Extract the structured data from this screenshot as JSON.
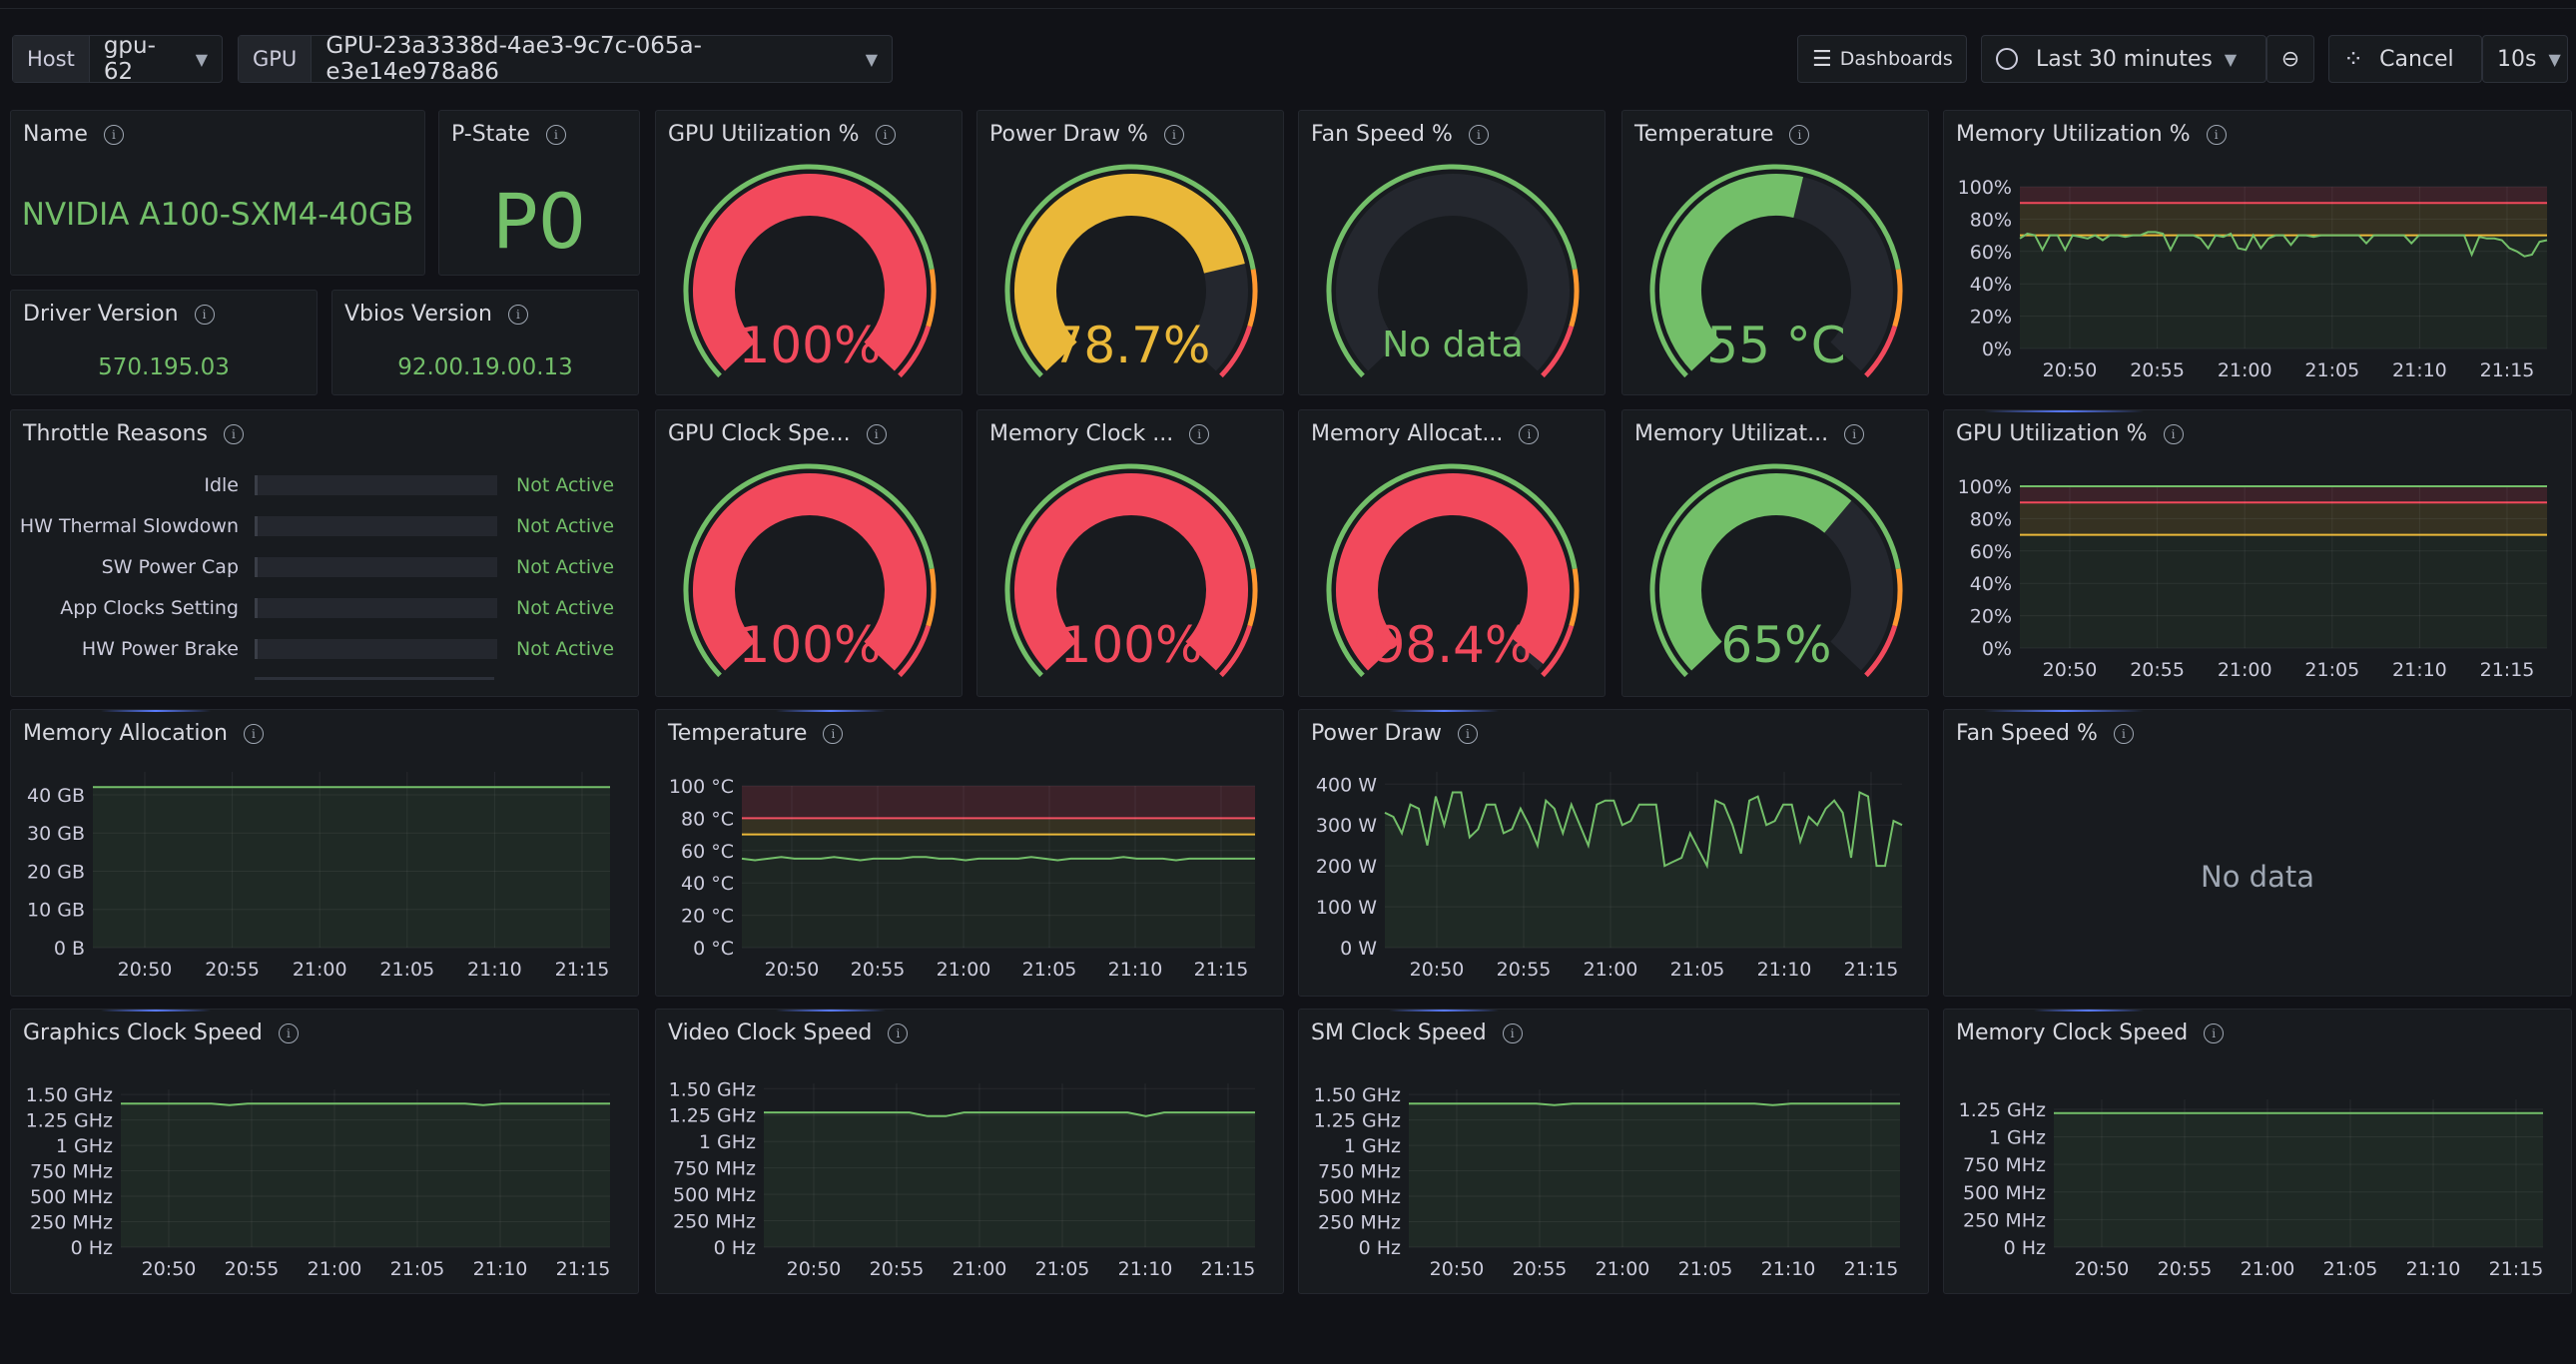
{
  "toolbar": {
    "host_label": "Host",
    "host_value": "gpu-62",
    "gpu_label": "GPU",
    "gpu_value": "GPU-23a3338d-4ae3-9c7c-065a-e3e14e978a86",
    "dashboards_label": "Dashboards",
    "time_range": "Last 30 minutes",
    "cancel_label": "Cancel",
    "refresh_interval": "10s"
  },
  "stats": {
    "name": {
      "title": "Name",
      "value": "NVIDIA A100-SXM4-40GB"
    },
    "pstate": {
      "title": "P-State",
      "value": "P0"
    },
    "driver": {
      "title": "Driver Version",
      "value": "570.195.03"
    },
    "vbios": {
      "title": "Vbios Version",
      "value": "92.00.19.00.13"
    }
  },
  "throttle": {
    "title": "Throttle Reasons",
    "rows": [
      {
        "label": "Idle",
        "status": "Not Active"
      },
      {
        "label": "HW Thermal Slowdown",
        "status": "Not Active"
      },
      {
        "label": "SW Power Cap",
        "status": "Not Active"
      },
      {
        "label": "App Clocks Setting",
        "status": "Not Active"
      },
      {
        "label": "HW Power Brake",
        "status": "Not Active"
      }
    ]
  },
  "gauges": [
    {
      "title": "GPU Utilization %",
      "value": 100,
      "display": "100%",
      "color": "#f2495c"
    },
    {
      "title": "Power Draw %",
      "value": 78.7,
      "display": "78.7%",
      "color": "#eab839"
    },
    {
      "title": "Fan Speed %",
      "value": null,
      "display": "No data",
      "color": "#73bf69"
    },
    {
      "title": "Temperature",
      "value": 55,
      "display": "55 °C",
      "color": "#73bf69"
    },
    {
      "title": "GPU Clock Spe...",
      "value": 100,
      "display": "100%",
      "color": "#f2495c"
    },
    {
      "title": "Memory Clock ...",
      "value": 100,
      "display": "100%",
      "color": "#f2495c"
    },
    {
      "title": "Memory Allocat...",
      "value": 98.4,
      "display": "98.4%",
      "color": "#f2495c"
    },
    {
      "title": "Memory Utilizat...",
      "value": 65,
      "display": "65%",
      "color": "#73bf69"
    }
  ],
  "colors": {
    "green": "#73bf69",
    "yellow": "#eab839",
    "red": "#f2495c",
    "orange": "#ff9830"
  },
  "no_data": "No data",
  "chart_data": [
    {
      "id": "mem_util_pct",
      "type": "line",
      "title": "Memory Utilization %",
      "x_ticks": [
        "20:50",
        "20:55",
        "21:00",
        "21:05",
        "21:10",
        "21:15"
      ],
      "y_ticks": [
        "0%",
        "20%",
        "40%",
        "60%",
        "80%",
        "100%"
      ],
      "ylim": [
        0,
        100
      ],
      "thresholds": [
        70,
        90
      ],
      "series": [
        {
          "values": [
            68,
            71,
            70,
            61,
            70,
            70,
            61,
            70,
            69,
            68,
            70,
            67,
            70,
            70,
            69,
            70,
            70,
            72,
            72,
            71,
            61,
            70,
            70,
            70,
            68,
            62,
            70,
            69,
            71,
            62,
            61,
            70,
            62,
            68,
            70,
            70,
            64,
            70,
            70,
            69,
            70,
            70,
            70,
            70,
            70,
            70,
            65,
            70,
            70,
            70,
            70,
            70,
            65,
            70,
            70,
            70,
            70,
            70,
            70,
            70,
            58,
            69,
            68,
            68,
            67,
            62,
            60,
            57,
            58,
            66,
            67
          ]
        }
      ]
    },
    {
      "id": "gpu_util_pct",
      "type": "line",
      "title": "GPU Utilization %",
      "x_ticks": [
        "20:50",
        "20:55",
        "21:00",
        "21:05",
        "21:10",
        "21:15"
      ],
      "y_ticks": [
        "0%",
        "20%",
        "40%",
        "60%",
        "80%",
        "100%"
      ],
      "ylim": [
        0,
        100
      ],
      "thresholds": [
        70,
        90
      ],
      "series": [
        {
          "values": [
            100,
            100,
            100,
            100,
            100,
            100,
            100,
            100,
            100,
            100,
            100,
            100,
            100,
            100,
            100,
            100,
            100,
            100,
            100,
            100
          ]
        }
      ]
    },
    {
      "id": "mem_alloc",
      "type": "line",
      "title": "Memory Allocation",
      "x_ticks": [
        "20:50",
        "20:55",
        "21:00",
        "21:05",
        "21:10",
        "21:15"
      ],
      "y_ticks": [
        "0 B",
        "10 GB",
        "20 GB",
        "30 GB",
        "40 GB"
      ],
      "ylim": [
        0,
        46
      ],
      "series": [
        {
          "values": [
            42,
            42,
            42,
            42,
            42,
            42,
            42,
            42,
            42,
            42,
            42,
            42,
            42,
            42,
            42,
            42,
            42,
            42,
            42,
            42
          ]
        }
      ]
    },
    {
      "id": "temperature",
      "type": "line",
      "title": "Temperature",
      "x_ticks": [
        "20:50",
        "20:55",
        "21:00",
        "21:05",
        "21:10",
        "21:15"
      ],
      "y_ticks": [
        "0 °C",
        "20 °C",
        "40 °C",
        "60 °C",
        "80 °C",
        "100 °C"
      ],
      "ylim": [
        0,
        100
      ],
      "thresholds": [
        70,
        80
      ],
      "series": [
        {
          "values": [
            55,
            54,
            55,
            56,
            55,
            55,
            55,
            56,
            55,
            54,
            55,
            55,
            55,
            56,
            56,
            55,
            55,
            54,
            55,
            55,
            55,
            55,
            56,
            55,
            54,
            55,
            55,
            55,
            55,
            56,
            55,
            55,
            55,
            54,
            55,
            55,
            55,
            55,
            55,
            55
          ]
        }
      ]
    },
    {
      "id": "power_draw",
      "type": "line",
      "title": "Power Draw",
      "x_ticks": [
        "20:50",
        "20:55",
        "21:00",
        "21:05",
        "21:10",
        "21:15"
      ],
      "y_ticks": [
        "0 W",
        "100 W",
        "200 W",
        "300 W",
        "400 W"
      ],
      "ylim": [
        0,
        430
      ],
      "series": [
        {
          "values": [
            330,
            320,
            280,
            350,
            340,
            250,
            370,
            300,
            380,
            380,
            270,
            290,
            350,
            350,
            280,
            290,
            340,
            300,
            250,
            360,
            340,
            280,
            350,
            300,
            250,
            350,
            360,
            360,
            300,
            310,
            350,
            350,
            350,
            200,
            210,
            220,
            280,
            240,
            200,
            360,
            350,
            300,
            230,
            360,
            370,
            300,
            310,
            350,
            350,
            260,
            320,
            300,
            340,
            360,
            330,
            220,
            380,
            370,
            200,
            200,
            310,
            300
          ]
        }
      ]
    },
    {
      "id": "graphics_clock",
      "type": "line",
      "title": "Graphics Clock Speed",
      "x_ticks": [
        "20:50",
        "20:55",
        "21:00",
        "21:05",
        "21:10",
        "21:15"
      ],
      "y_ticks": [
        "0 Hz",
        "250 MHz",
        "500 MHz",
        "750 MHz",
        "1 GHz",
        "1.25 GHz",
        "1.50 GHz"
      ],
      "ylim": [
        0,
        1550
      ],
      "series": [
        {
          "values": [
            1410,
            1410,
            1410,
            1410,
            1410,
            1410,
            1395,
            1410,
            1410,
            1410,
            1410,
            1410,
            1410,
            1410,
            1410,
            1410,
            1410,
            1410,
            1410,
            1410,
            1395,
            1410,
            1410,
            1410,
            1410,
            1410,
            1410,
            1410
          ]
        }
      ]
    },
    {
      "id": "video_clock",
      "type": "line",
      "title": "Video Clock Speed",
      "x_ticks": [
        "20:50",
        "20:55",
        "21:00",
        "21:05",
        "21:10",
        "21:15"
      ],
      "y_ticks": [
        "0 Hz",
        "250 MHz",
        "500 MHz",
        "750 MHz",
        "1 GHz",
        "1.25 GHz",
        "1.50 GHz"
      ],
      "ylim": [
        0,
        1550
      ],
      "series": [
        {
          "values": [
            1275,
            1275,
            1275,
            1275,
            1275,
            1275,
            1275,
            1275,
            1275,
            1240,
            1240,
            1275,
            1275,
            1275,
            1275,
            1275,
            1275,
            1275,
            1275,
            1275,
            1275,
            1240,
            1275,
            1275,
            1275,
            1275,
            1275,
            1275
          ]
        }
      ]
    },
    {
      "id": "sm_clock",
      "type": "line",
      "title": "SM Clock Speed",
      "x_ticks": [
        "20:50",
        "20:55",
        "21:00",
        "21:05",
        "21:10",
        "21:15"
      ],
      "y_ticks": [
        "0 Hz",
        "250 MHz",
        "500 MHz",
        "750 MHz",
        "1 GHz",
        "1.25 GHz",
        "1.50 GHz"
      ],
      "ylim": [
        0,
        1550
      ],
      "series": [
        {
          "values": [
            1410,
            1410,
            1410,
            1410,
            1410,
            1410,
            1410,
            1410,
            1395,
            1410,
            1410,
            1410,
            1410,
            1410,
            1410,
            1410,
            1410,
            1410,
            1410,
            1410,
            1395,
            1410,
            1410,
            1410,
            1410,
            1410,
            1410,
            1410
          ]
        }
      ]
    },
    {
      "id": "memory_clock",
      "type": "line",
      "title": "Memory Clock Speed",
      "x_ticks": [
        "20:50",
        "20:55",
        "21:00",
        "21:05",
        "21:10",
        "21:15"
      ],
      "y_ticks": [
        "0 Hz",
        "250 MHz",
        "500 MHz",
        "750 MHz",
        "1 GHz",
        "1.25 GHz"
      ],
      "ylim": [
        0,
        1340
      ],
      "series": [
        {
          "values": [
            1215,
            1215,
            1215,
            1215,
            1215,
            1215,
            1215,
            1215,
            1215,
            1215,
            1215,
            1215,
            1215,
            1215,
            1215,
            1215,
            1215,
            1215,
            1215,
            1215
          ]
        }
      ]
    },
    {
      "id": "fan_speed",
      "type": "line",
      "title": "Fan Speed %",
      "series": []
    }
  ]
}
